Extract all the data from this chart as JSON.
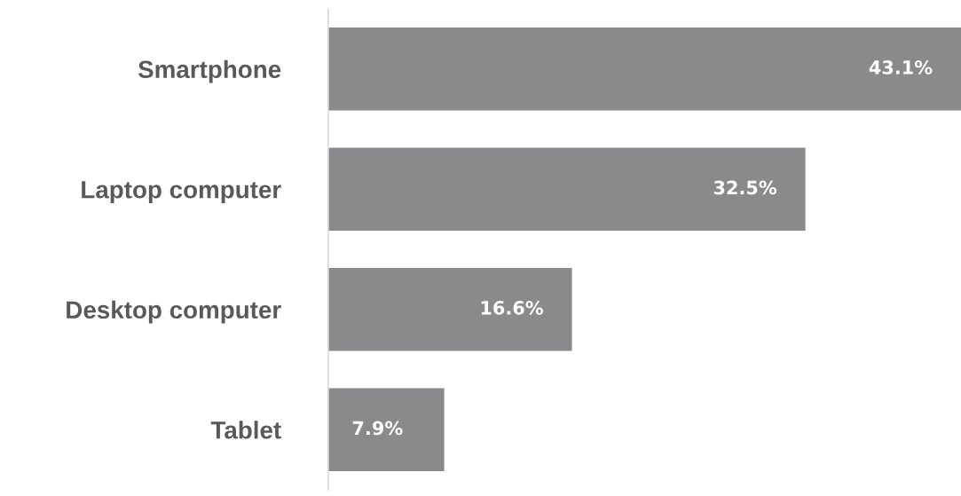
{
  "chart_data": {
    "type": "bar",
    "orientation": "horizontal",
    "categories": [
      "Smartphone",
      "Laptop computer",
      "Desktop computer",
      "Tablet"
    ],
    "values": [
      43.1,
      32.5,
      16.6,
      7.9
    ],
    "value_labels": [
      "43.1%",
      "32.5%",
      "16.6%",
      "7.9%"
    ],
    "color": "#8a8a8c",
    "grid": false,
    "legend": false,
    "tick_labels": "y"
  }
}
